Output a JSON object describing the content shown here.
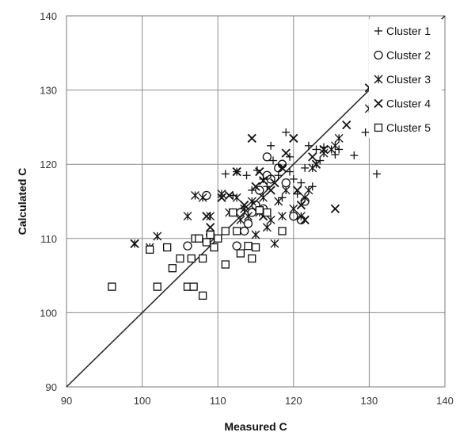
{
  "chart_data": {
    "type": "scatter",
    "xlabel": "Measured C",
    "ylabel": "Calculated C",
    "xlim": [
      90,
      140
    ],
    "ylim": [
      90,
      140
    ],
    "xticks": [
      "90",
      "100",
      "110",
      "120",
      "130",
      "140"
    ],
    "yticks": [
      "90",
      "100",
      "110",
      "120",
      "130",
      "140"
    ],
    "grid": true,
    "legend_position": "top-right",
    "reference_line": {
      "from": [
        90,
        90
      ],
      "to": [
        140,
        140
      ]
    },
    "series": [
      {
        "name": "Cluster 1",
        "marker": "plus",
        "points": [
          [
            111.0,
            118.7
          ],
          [
            112.5,
            119.0
          ],
          [
            113.8,
            118.5
          ],
          [
            115.2,
            119.2
          ],
          [
            116.0,
            118.0
          ],
          [
            117.0,
            122.5
          ],
          [
            117.3,
            120.5
          ],
          [
            118.0,
            118.5
          ],
          [
            119.0,
            124.3
          ],
          [
            119.5,
            119.0
          ],
          [
            120.0,
            118.0
          ],
          [
            121.0,
            117.5
          ],
          [
            121.5,
            119.5
          ],
          [
            122.0,
            122.5
          ],
          [
            122.5,
            117.0
          ],
          [
            123.0,
            122.0
          ],
          [
            123.5,
            120.5
          ],
          [
            124.0,
            122.3
          ],
          [
            125.5,
            121.3
          ],
          [
            126.0,
            122.0
          ],
          [
            128.0,
            121.2
          ],
          [
            129.5,
            124.3
          ],
          [
            130.5,
            124.3
          ],
          [
            131.0,
            118.7
          ],
          [
            120.5,
            116.0
          ],
          [
            118.5,
            115.5
          ],
          [
            116.5,
            117.0
          ],
          [
            114.5,
            116.5
          ],
          [
            112.0,
            115.8
          ],
          [
            119.5,
            121.0
          ]
        ]
      },
      {
        "name": "Cluster 2",
        "marker": "circle",
        "points": [
          [
            106.0,
            109.0
          ],
          [
            109.0,
            110.5
          ],
          [
            112.5,
            109.0
          ],
          [
            113.0,
            113.5
          ],
          [
            113.5,
            111.0
          ],
          [
            114.5,
            113.5
          ],
          [
            115.0,
            114.5
          ],
          [
            115.5,
            116.5
          ],
          [
            116.0,
            114.0
          ],
          [
            116.5,
            118.5
          ],
          [
            117.0,
            118.0
          ],
          [
            118.0,
            119.5
          ],
          [
            118.5,
            120.0
          ],
          [
            119.0,
            117.5
          ],
          [
            120.0,
            113.0
          ],
          [
            121.0,
            112.5
          ],
          [
            121.5,
            115.0
          ],
          [
            116.5,
            121.0
          ],
          [
            108.5,
            115.8
          ],
          [
            114.0,
            112.0
          ]
        ]
      },
      {
        "name": "Cluster 3",
        "marker": "star",
        "points": [
          [
            99.0,
            109.3
          ],
          [
            101.0,
            108.8
          ],
          [
            102.0,
            110.3
          ],
          [
            106.0,
            113.0
          ],
          [
            107.0,
            115.8
          ],
          [
            108.0,
            115.5
          ],
          [
            109.0,
            113.0
          ],
          [
            109.5,
            110.0
          ],
          [
            110.5,
            116.0
          ],
          [
            111.5,
            113.5
          ],
          [
            112.5,
            115.5
          ],
          [
            113.0,
            112.5
          ],
          [
            113.5,
            114.0
          ],
          [
            114.0,
            113.0
          ],
          [
            114.5,
            115.0
          ],
          [
            115.0,
            110.5
          ],
          [
            115.5,
            113.5
          ],
          [
            116.0,
            115.5
          ],
          [
            116.5,
            111.5
          ],
          [
            117.0,
            112.5
          ],
          [
            117.5,
            109.3
          ],
          [
            118.0,
            115.0
          ],
          [
            118.5,
            113.0
          ],
          [
            119.0,
            116.5
          ],
          [
            120.0,
            114.0
          ],
          [
            121.0,
            113.0
          ],
          [
            121.5,
            115.5
          ],
          [
            122.0,
            116.5
          ],
          [
            122.5,
            119.5
          ],
          [
            123.0,
            120.0
          ],
          [
            124.0,
            121.5
          ],
          [
            125.0,
            122.0
          ],
          [
            125.5,
            122.5
          ],
          [
            126.0,
            123.5
          ],
          [
            130.0,
            127.5
          ],
          [
            132.0,
            126.5
          ],
          [
            134.0,
            127.5
          ]
        ]
      },
      {
        "name": "Cluster 4",
        "marker": "x",
        "points": [
          [
            99.0,
            109.3
          ],
          [
            108.5,
            113.0
          ],
          [
            109.0,
            111.5
          ],
          [
            110.5,
            115.5
          ],
          [
            111.5,
            115.8
          ],
          [
            112.5,
            119.0
          ],
          [
            113.5,
            114.5
          ],
          [
            114.5,
            123.5
          ],
          [
            115.0,
            117.0
          ],
          [
            115.5,
            119.0
          ],
          [
            116.0,
            113.0
          ],
          [
            117.0,
            116.5
          ],
          [
            117.5,
            117.5
          ],
          [
            118.5,
            119.5
          ],
          [
            119.0,
            121.5
          ],
          [
            120.0,
            123.5
          ],
          [
            120.5,
            116.5
          ],
          [
            121.0,
            114.5
          ],
          [
            121.5,
            112.5
          ],
          [
            122.5,
            121.0
          ],
          [
            123.0,
            120.0
          ],
          [
            124.0,
            122.0
          ],
          [
            125.5,
            114.0
          ],
          [
            127.0,
            125.3
          ],
          [
            130.0,
            130.3
          ],
          [
            132.0,
            129.0
          ],
          [
            116.0,
            117.8
          ]
        ]
      },
      {
        "name": "Cluster 5",
        "marker": "square",
        "points": [
          [
            96.0,
            103.5
          ],
          [
            101.0,
            108.5
          ],
          [
            102.0,
            103.5
          ],
          [
            103.3,
            108.8
          ],
          [
            104.0,
            106.0
          ],
          [
            105.0,
            107.3
          ],
          [
            106.0,
            103.5
          ],
          [
            106.5,
            107.3
          ],
          [
            106.8,
            103.5
          ],
          [
            107.0,
            110.0
          ],
          [
            107.5,
            110.0
          ],
          [
            108.0,
            107.3
          ],
          [
            108.0,
            102.3
          ],
          [
            108.5,
            109.5
          ],
          [
            109.0,
            110.5
          ],
          [
            109.5,
            108.8
          ],
          [
            110.0,
            110.0
          ],
          [
            111.0,
            111.0
          ],
          [
            112.0,
            113.5
          ],
          [
            112.5,
            111.0
          ],
          [
            113.0,
            108.0
          ],
          [
            114.0,
            109.0
          ],
          [
            114.5,
            107.3
          ],
          [
            115.0,
            108.8
          ],
          [
            115.5,
            113.8
          ],
          [
            118.5,
            111.0
          ],
          [
            111.0,
            106.5
          ],
          [
            116.5,
            113.5
          ]
        ]
      }
    ]
  }
}
